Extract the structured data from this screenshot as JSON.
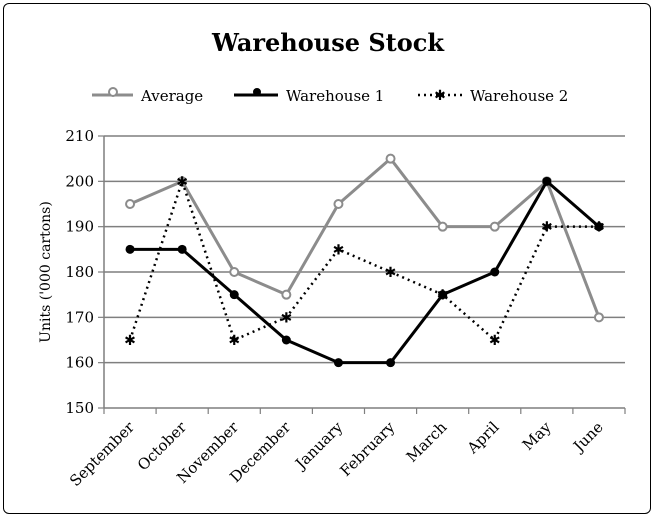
{
  "chart_data": {
    "type": "line",
    "title": "Warehouse Stock",
    "xlabel": "",
    "ylabel": "Units ('000 cartons)",
    "ylim": [
      150,
      210
    ],
    "yticks": [
      150,
      160,
      170,
      180,
      190,
      200,
      210
    ],
    "grid": true,
    "legend_position": "top",
    "categories": [
      "September",
      "October",
      "November",
      "December",
      "January",
      "February",
      "March",
      "April",
      "May",
      "June"
    ],
    "series": [
      {
        "name": "Average",
        "style": "solid-gray",
        "color": "#8c8c8c",
        "marker": "circle-open",
        "values": [
          195,
          200,
          180,
          175,
          195,
          205,
          190,
          190,
          200,
          170
        ]
      },
      {
        "name": "Warehouse 1",
        "style": "solid-black",
        "color": "#000000",
        "marker": "circle-filled",
        "values": [
          185,
          185,
          175,
          165,
          160,
          160,
          175,
          180,
          200,
          190
        ]
      },
      {
        "name": "Warehouse 2",
        "style": "dotted-black",
        "color": "#000000",
        "marker": "star",
        "values": [
          165,
          200,
          165,
          170,
          185,
          180,
          175,
          165,
          190,
          190
        ]
      }
    ]
  }
}
